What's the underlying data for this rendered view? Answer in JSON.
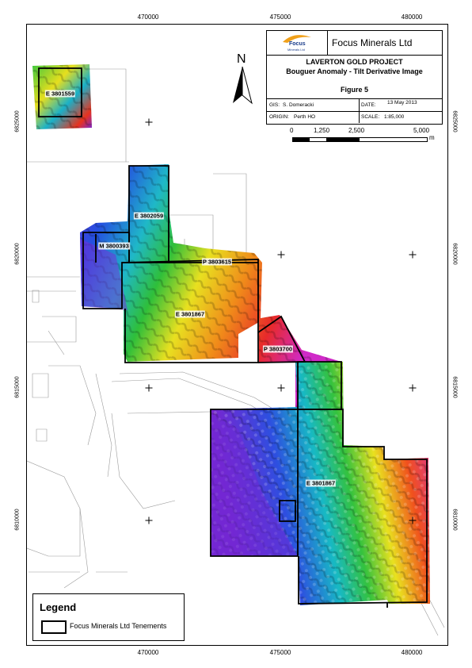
{
  "coords": {
    "eastings": [
      "470000",
      "475000",
      "480000"
    ],
    "northings": [
      "6825000",
      "6820000",
      "6815000",
      "6810000"
    ]
  },
  "title_block": {
    "company": "Focus Minerals Ltd",
    "logo_text": "Focus",
    "logo_sub": "Minerals Ltd",
    "project": "LAVERTON GOLD PROJECT",
    "subtitle": "Bouguer Anomaly - Tilt Derivative Image",
    "figure": "Figure 5",
    "gis_label": "GIS:",
    "gis_value": "S. Domeracki",
    "date_label": "DATE:",
    "date_value": "13 May 2013",
    "origin_label": "ORIGIN:",
    "origin_value": "Perth HO",
    "scale_label": "SCALE:",
    "scale_value": "1:85,000"
  },
  "north_arrow": {
    "letter": "N"
  },
  "scale_bar": {
    "labels": [
      "0",
      "1,250",
      "2,500",
      "5,000"
    ],
    "unit": "m"
  },
  "tenements": [
    "E 3801559",
    "E 3802059",
    "M 3800393",
    "P 3803615",
    "E 3801867",
    "P 3803700",
    "E 3801867"
  ],
  "legend": {
    "title": "Legend",
    "item": "Focus Minerals Ltd Tenements"
  }
}
